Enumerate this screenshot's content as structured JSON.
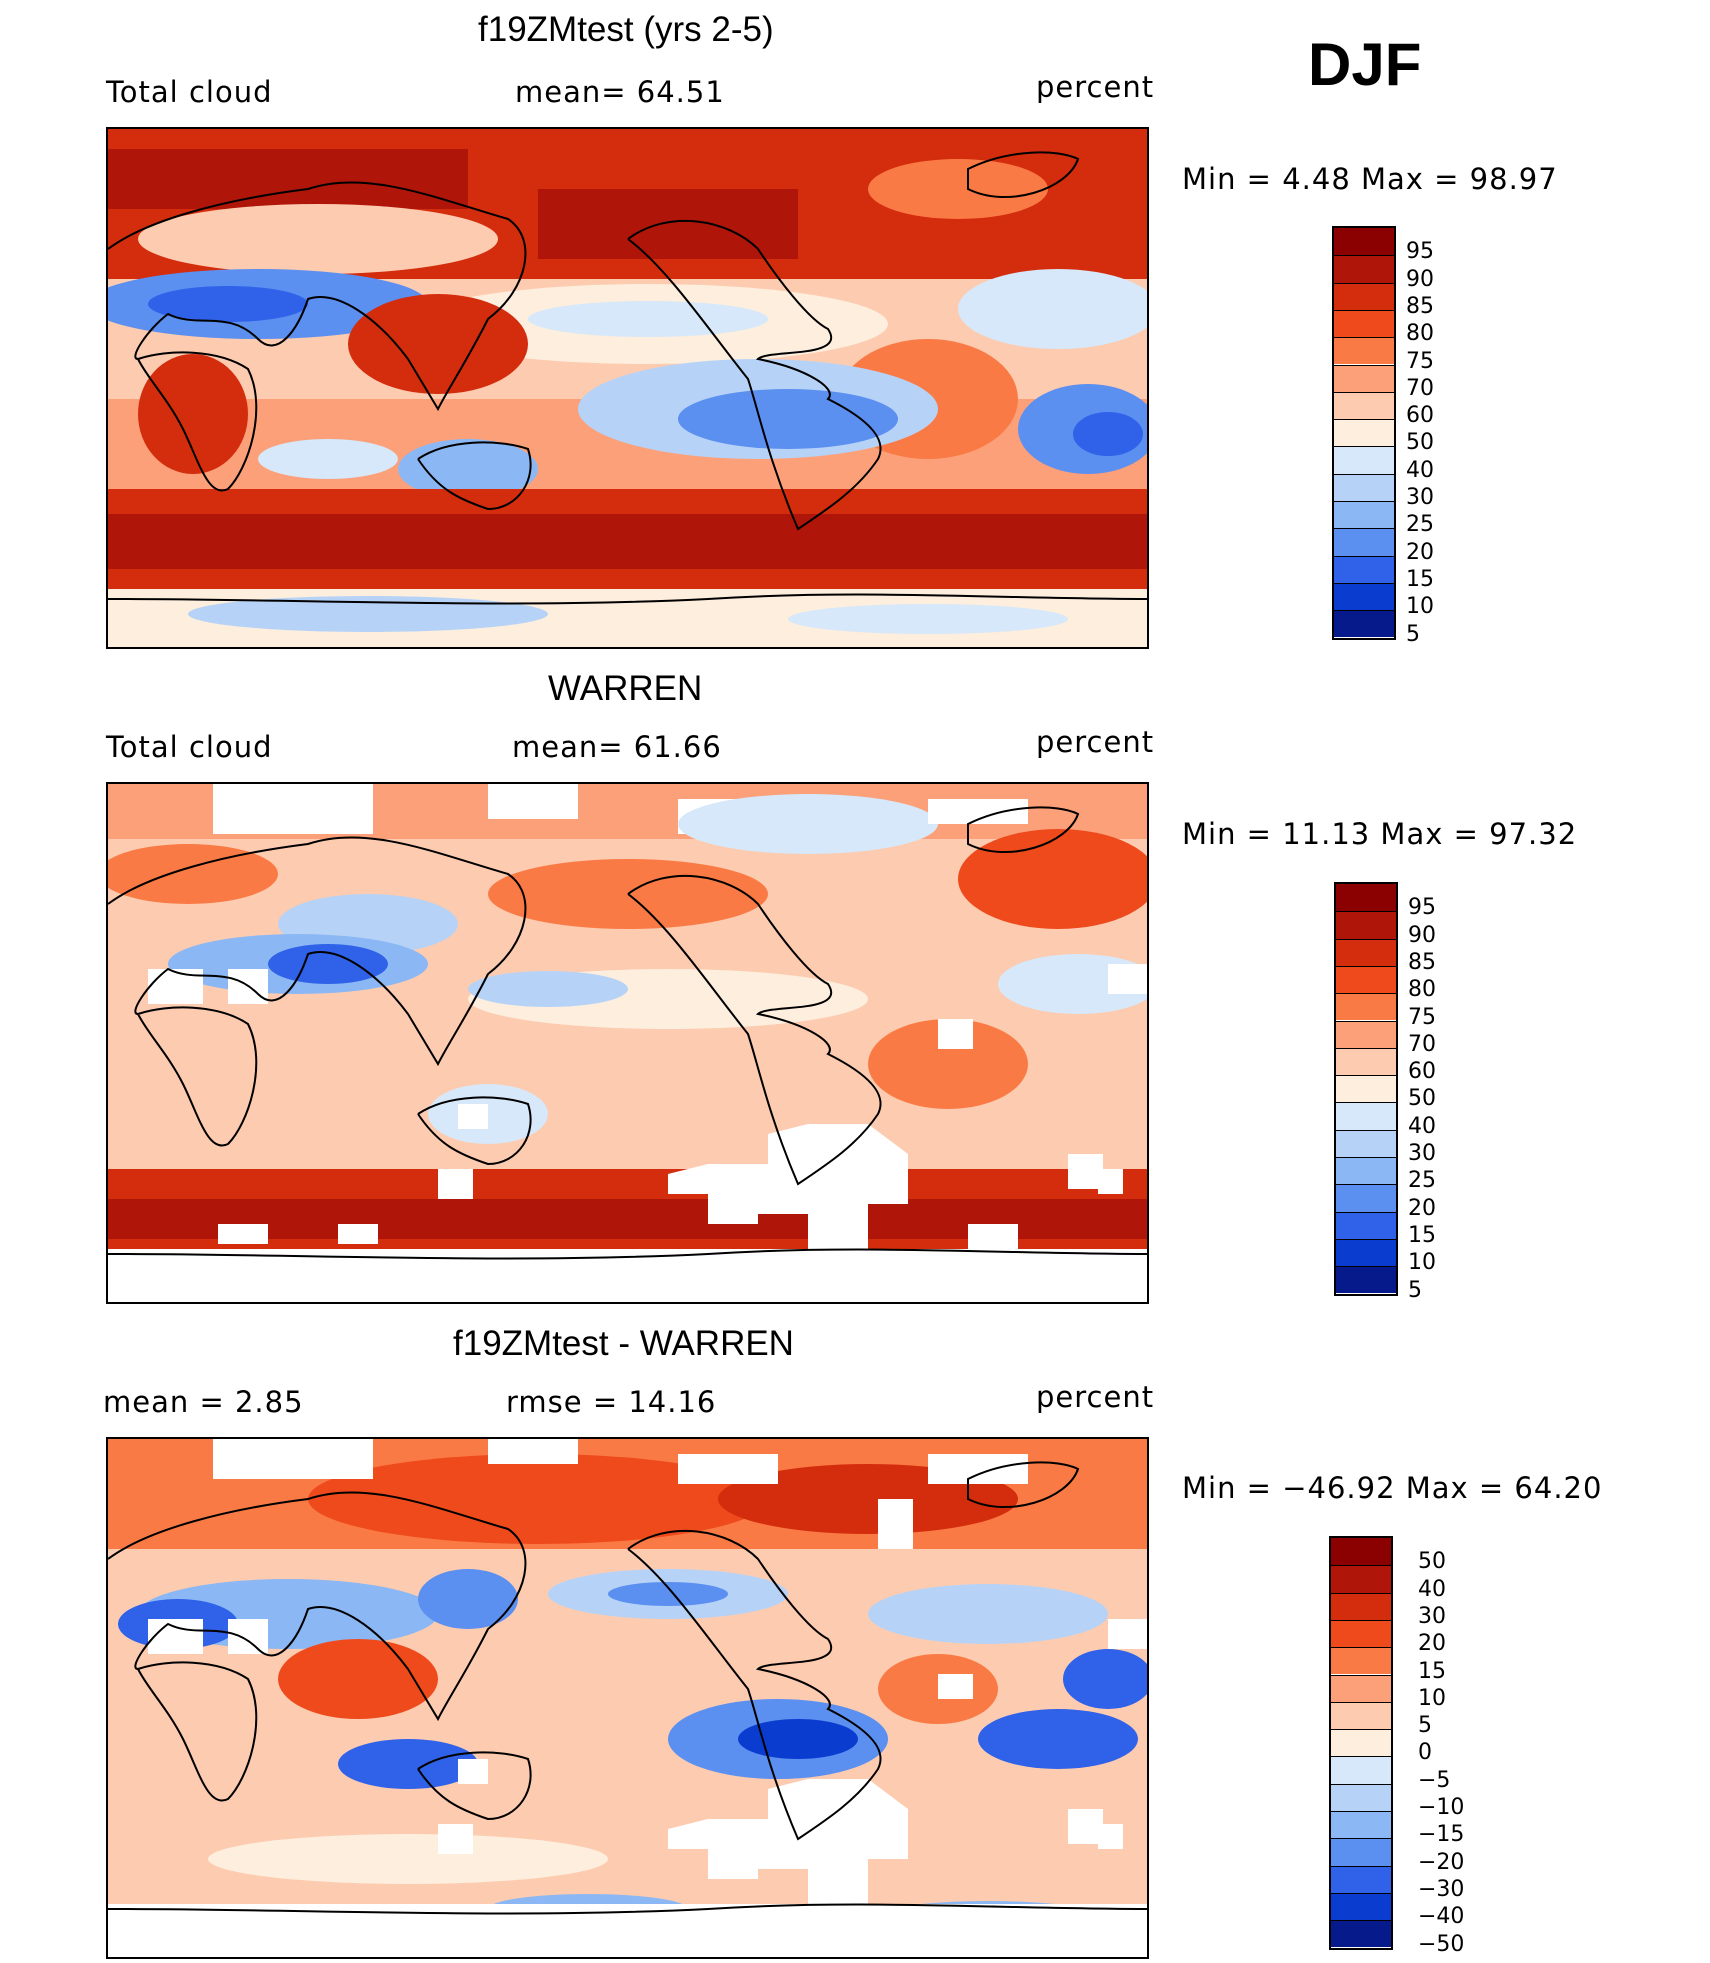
{
  "season": "DJF",
  "panels": [
    {
      "title": "f19ZMtest (yrs 2-5)",
      "variable": "Total cloud",
      "stat1": "mean=   64.51",
      "stat2": "",
      "units": "percent",
      "minmax": "Min =    4.48  Max =    98.97",
      "colorbar": {
        "levels": [
          "95",
          "90",
          "85",
          "80",
          "75",
          "70",
          "60",
          "50",
          "40",
          "30",
          "25",
          "20",
          "15",
          "10",
          "5"
        ],
        "colors": [
          "#8b0000",
          "#b0150a",
          "#d42d0e",
          "#ee4a1c",
          "#fa7a45",
          "#fca07a",
          "#fdcbb0",
          "#fdeedd",
          "#d6e8fa",
          "#b6d3f7",
          "#8bb8f4",
          "#5b8ff0",
          "#2f62e8",
          "#0b3cd0",
          "#061a8c"
        ]
      }
    },
    {
      "title": "WARREN",
      "variable": "Total cloud",
      "stat1": "mean=   61.66",
      "stat2": "",
      "units": "percent",
      "minmax": "Min =   11.13  Max =    97.32",
      "colorbar": {
        "levels": [
          "95",
          "90",
          "85",
          "80",
          "75",
          "70",
          "60",
          "50",
          "40",
          "30",
          "25",
          "20",
          "15",
          "10",
          "5"
        ],
        "colors": [
          "#8b0000",
          "#b0150a",
          "#d42d0e",
          "#ee4a1c",
          "#fa7a45",
          "#fca07a",
          "#fdcbb0",
          "#fdeedd",
          "#d6e8fa",
          "#b6d3f7",
          "#8bb8f4",
          "#5b8ff0",
          "#2f62e8",
          "#0b3cd0",
          "#061a8c"
        ]
      }
    },
    {
      "title": "f19ZMtest - WARREN",
      "variable": "mean =     2.85",
      "stat1": "rmse  =    14.16",
      "stat2": "",
      "units": "percent",
      "minmax": "Min = −46.92  Max =    64.20",
      "colorbar": {
        "levels": [
          "50",
          "40",
          "30",
          "20",
          "15",
          "10",
          "5",
          "0",
          "−5",
          "−10",
          "−15",
          "−20",
          "−30",
          "−40",
          "−50"
        ],
        "colors": [
          "#8b0000",
          "#b0150a",
          "#d42d0e",
          "#ee4a1c",
          "#fa7a45",
          "#fca07a",
          "#fdcbb0",
          "#fdeedd",
          "#d6e8fa",
          "#b6d3f7",
          "#8bb8f4",
          "#5b8ff0",
          "#2f62e8",
          "#0b3cd0",
          "#061a8c"
        ]
      }
    }
  ]
}
